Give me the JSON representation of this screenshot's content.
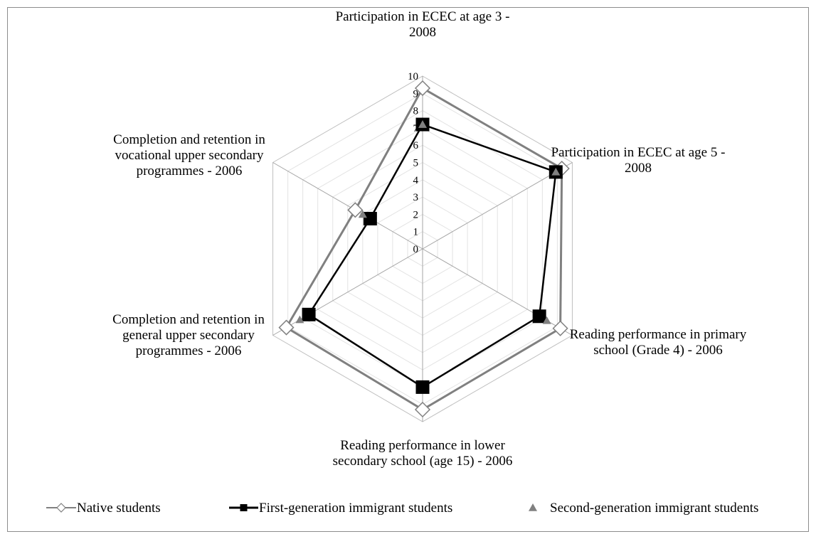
{
  "chart_data": {
    "type": "radar",
    "axes": [
      [
        "Participation in ECEC at age 3 -",
        "2008"
      ],
      [
        "Participation in ECEC at age 5 -",
        "2008"
      ],
      [
        "Reading performance in primary",
        "school (Grade 4) - 2006"
      ],
      [
        "Reading performance in lower",
        "secondary school (age 15) - 2006"
      ],
      [
        "Completion and retention in",
        "general upper secondary",
        "programmes - 2006"
      ],
      [
        "Completion and retention in",
        "vocational upper secondary",
        "programmes - 2006"
      ]
    ],
    "rlim": [
      0,
      10
    ],
    "ticks": [
      0,
      1,
      2,
      3,
      4,
      5,
      6,
      7,
      8,
      9,
      10
    ],
    "grid": true,
    "legend_position": "bottom",
    "series": [
      {
        "name": "Native students",
        "values": [
          9.3,
          9.3,
          9.2,
          9.3,
          9.1,
          4.5
        ],
        "color": "#808080",
        "marker": "diamond-open"
      },
      {
        "name": "First-generation immigrant students",
        "values": [
          7.2,
          8.9,
          7.8,
          8.0,
          7.6,
          3.5
        ],
        "color": "#000000",
        "marker": "square"
      },
      {
        "name": "Second-generation immigrant students",
        "values": [
          7.2,
          8.9,
          8.3,
          null,
          8.2,
          4.0
        ],
        "color": "#808080",
        "marker": "triangle"
      }
    ]
  }
}
